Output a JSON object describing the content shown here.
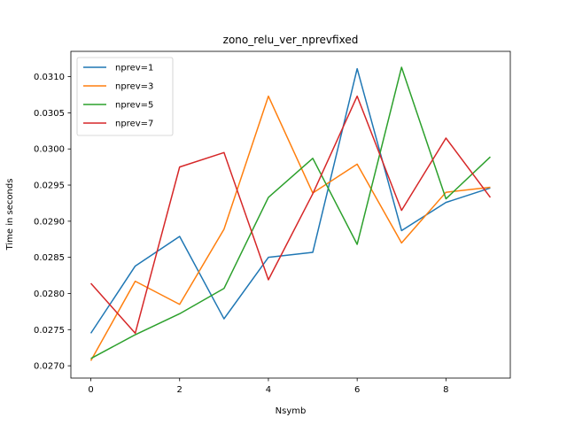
{
  "chart_data": {
    "type": "line",
    "title": "zono_relu_ver_nprevfixed",
    "xlabel": "Nsymb",
    "ylabel": "Time in seconds",
    "x": [
      0,
      1,
      2,
      3,
      4,
      5,
      6,
      7,
      8,
      9
    ],
    "xlim": [
      -0.45,
      9.45
    ],
    "ylim": [
      0.02683,
      0.03135
    ],
    "xticks": [
      "0",
      "2",
      "4",
      "6",
      "8"
    ],
    "xtick_values": [
      0,
      2,
      4,
      6,
      8
    ],
    "yticks": [
      "0.0270",
      "0.0275",
      "0.0280",
      "0.0285",
      "0.0290",
      "0.0295",
      "0.0300",
      "0.0305",
      "0.0310"
    ],
    "ytick_values": [
      0.027,
      0.0275,
      0.028,
      0.0285,
      0.029,
      0.0295,
      0.03,
      0.0305,
      0.031
    ],
    "grid": false,
    "legend_position": "top-left",
    "series": [
      {
        "name": "nprev=1",
        "color": "#1f77b4",
        "values": [
          0.02745,
          0.02838,
          0.02879,
          0.02765,
          0.0285,
          0.02857,
          0.03111,
          0.02887,
          0.02926,
          0.02946
        ]
      },
      {
        "name": "nprev=3",
        "color": "#ff7f0e",
        "values": [
          0.02707,
          0.02817,
          0.02785,
          0.02889,
          0.03073,
          0.02939,
          0.02979,
          0.0287,
          0.0294,
          0.02947
        ]
      },
      {
        "name": "nprev=5",
        "color": "#2ca02c",
        "values": [
          0.0271,
          0.02743,
          0.02772,
          0.02807,
          0.02933,
          0.02987,
          0.02868,
          0.03113,
          0.02931,
          0.02989
        ]
      },
      {
        "name": "nprev=7",
        "color": "#d62728",
        "values": [
          0.02814,
          0.02745,
          0.02975,
          0.02995,
          0.02819,
          0.02938,
          0.03073,
          0.02915,
          0.03015,
          0.02933
        ]
      }
    ]
  }
}
